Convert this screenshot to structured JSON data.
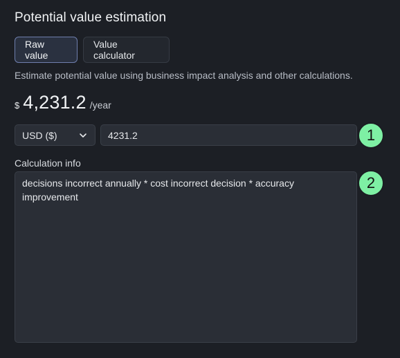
{
  "header": {
    "title": "Potential value estimation"
  },
  "tabs": [
    {
      "label": "Raw value",
      "active": true
    },
    {
      "label": "Value calculator",
      "active": false
    }
  ],
  "description": "Estimate potential value using business impact analysis and other calculations.",
  "estimate": {
    "currency_symbol": "$",
    "value": "4,231.2",
    "unit": "/year"
  },
  "currency_select": {
    "selected": "USD ($)"
  },
  "value_input": {
    "value": "4231.2"
  },
  "calculation": {
    "label": "Calculation info",
    "value": "decisions incorrect annually * cost incorrect decision * accuracy improvement"
  },
  "badges": [
    "1",
    "2"
  ],
  "colors": {
    "background": "#1c1f25",
    "active_tab_border": "#6f7fae",
    "badge": "#7ef0a4"
  },
  "icons": {
    "select": "chevron-down-icon"
  }
}
